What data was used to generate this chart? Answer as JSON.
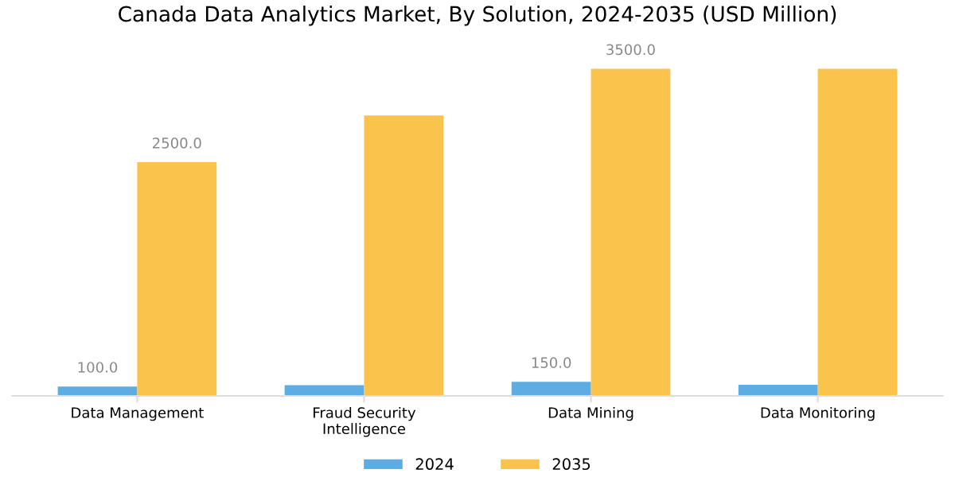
{
  "chart_data": {
    "type": "bar",
    "title": "Canada Data Analytics Market, By Solution, 2024-2035 (USD Million)",
    "categories": [
      "Data Management",
      "Fraud Security\nIntelligence",
      "Data Mining",
      "Data Monitoring"
    ],
    "series": [
      {
        "name": "2024",
        "color": "#5dade2",
        "values": [
          100,
          115,
          150,
          120
        ],
        "value_labels": [
          "100.0",
          null,
          "150.0",
          null
        ]
      },
      {
        "name": "2035",
        "color": "#f9c34c",
        "values": [
          2500,
          3000,
          3500,
          3500
        ],
        "value_labels": [
          "2500.0",
          null,
          "3500.0",
          null
        ]
      }
    ],
    "legend": "bottom"
  }
}
